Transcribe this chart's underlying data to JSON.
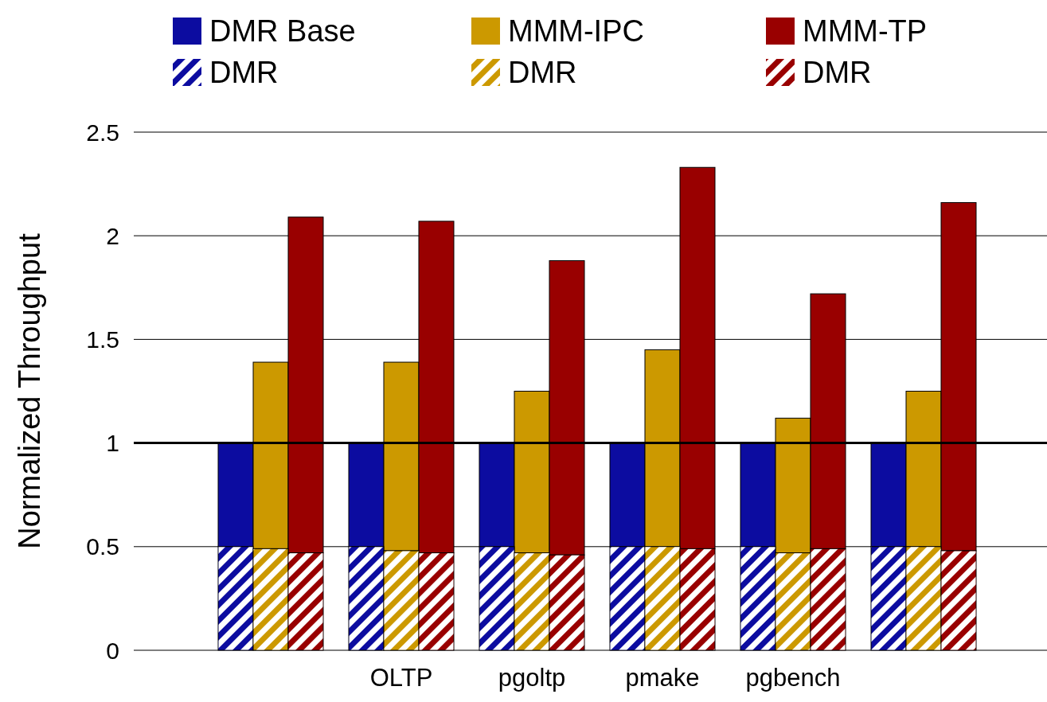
{
  "chart_data": {
    "type": "bar",
    "ylabel": "Normalized Throughput",
    "categories": [
      null,
      "OLTP",
      "pgoltp",
      "pmake",
      "pgbench",
      null
    ],
    "series": [
      {
        "name": "DMR Base",
        "color": "#0c0ca0",
        "values": [
          0.5,
          0.5,
          0.5,
          0.5,
          0.5,
          0.5
        ],
        "base": [
          0.5,
          0.5,
          0.5,
          0.5,
          0.5,
          0.5
        ]
      },
      {
        "name": "MMM-IPC",
        "color": "#cc9900",
        "values": [
          0.9,
          0.91,
          0.78,
          0.95,
          0.65,
          0.75
        ],
        "base": [
          0.49,
          0.48,
          0.47,
          0.5,
          0.47,
          0.5
        ]
      },
      {
        "name": "MMM-TP",
        "color": "#990000",
        "values": [
          1.62,
          1.6,
          1.42,
          1.84,
          1.23,
          1.68
        ],
        "base": [
          0.47,
          0.47,
          0.46,
          0.49,
          0.49,
          0.48
        ]
      },
      {
        "name": "DMR",
        "color": "#0c0ca0",
        "values": [
          0.5,
          0.5,
          0.5,
          0.5,
          0.5,
          0.5
        ]
      },
      {
        "name": "DMR",
        "color": "#cc9900",
        "values": [
          0.49,
          0.48,
          0.47,
          0.5,
          0.47,
          0.5
        ]
      },
      {
        "name": "DMR",
        "color": "#990000",
        "values": [
          0.47,
          0.47,
          0.46,
          0.49,
          0.49,
          0.48
        ]
      }
    ],
    "ylim": [
      0,
      2.5
    ],
    "yticks": [
      0,
      0.5,
      1,
      1.5,
      2,
      2.5
    ],
    "grid": "y",
    "legend": "top",
    "ref_lines": [
      {
        "axis": "y",
        "value": 1
      }
    ]
  }
}
